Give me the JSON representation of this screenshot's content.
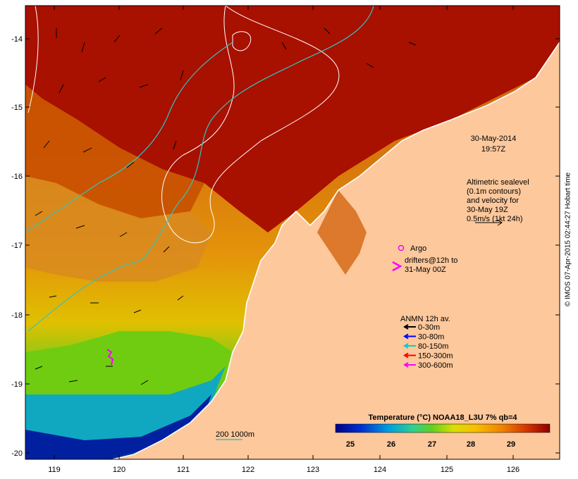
{
  "map": {
    "date_line1": "30-May-2014",
    "date_line2": "19:57Z",
    "altimetry_lines": [
      "Altimetric sealevel",
      "(0.1m contours)",
      "and velocity for",
      "30-May 19Z",
      "0.5m/s (1kt 24h)"
    ],
    "argo_label": "Argo",
    "drifters_lines": [
      "drifters@12h to",
      "31-May 00Z"
    ],
    "anmn_title": "ANMN 12h av.",
    "anmn_items": [
      {
        "label": "0-30m",
        "color": "#000000"
      },
      {
        "label": "30-80m",
        "color": "#0000ff"
      },
      {
        "label": "80-150m",
        "color": "#00d0d0"
      },
      {
        "label": "150-300m",
        "color": "#ff0000"
      },
      {
        "label": "300-600m",
        "color": "#ff00ff"
      }
    ],
    "isobath_label": "200  1000m",
    "colorbar_title": "Temperature (°C) NOAA18_L3U 7% qb=4",
    "colorbar_ticks": [
      "25",
      "26",
      "27",
      "28",
      "29"
    ],
    "x_ticks": [
      "119",
      "120",
      "121",
      "122",
      "123",
      "124",
      "125",
      "126"
    ],
    "y_ticks": [
      "-14",
      "-15",
      "-16",
      "-17",
      "-18",
      "-19",
      "-20"
    ],
    "credit": "© IMOS 07-Apr-2015 02:44:27 Hobart time",
    "colors": {
      "land": "#fcc89c",
      "hot": "#a80e00",
      "warm": "#ee7a08",
      "mid": "#f4a800",
      "cool": "#66cc00",
      "cold": "#002a9a",
      "contour": "#ffffff",
      "isobath": "#33c4c0",
      "magenta": "#ff00ff"
    }
  }
}
